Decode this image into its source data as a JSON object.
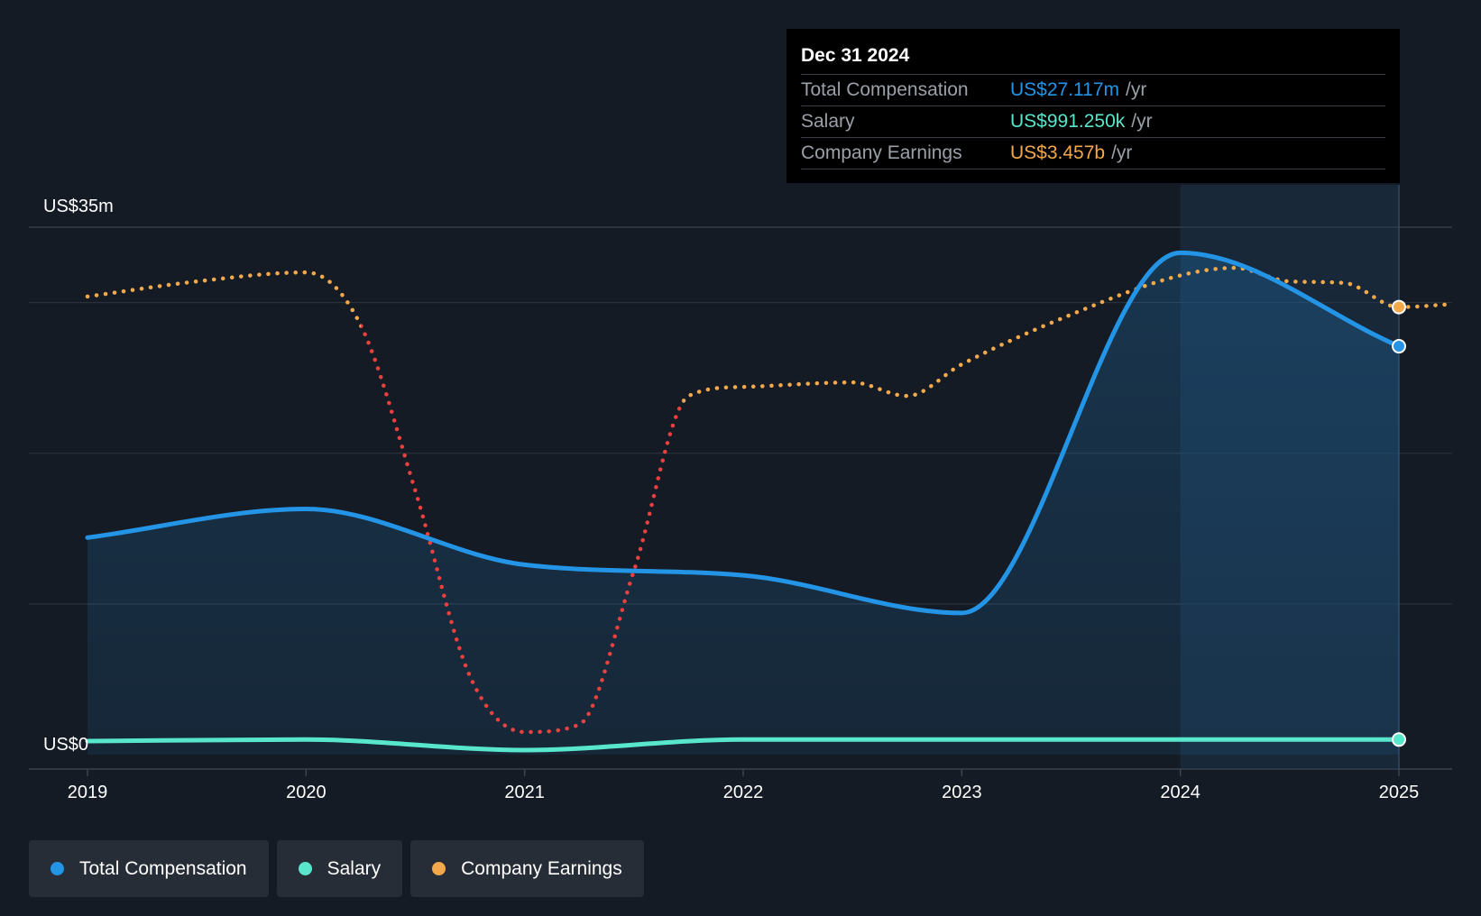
{
  "chart_data": {
    "type": "line",
    "y_axis": {
      "label_top": "US$35m",
      "label_bottom": "US$0",
      "ylim": [
        0,
        35
      ],
      "unit": "US$m"
    },
    "x_ticks": [
      "2019",
      "2020",
      "2021",
      "2022",
      "2023",
      "2024",
      "2025"
    ],
    "series": [
      {
        "name": "Total Compensation",
        "color": "#2394e6",
        "style": "solid-area",
        "x": [
          2019.0,
          2020.0,
          2021.0,
          2022.0,
          2023.0,
          2024.0,
          2025.0
        ],
        "values": [
          14.4,
          16.3,
          12.6,
          11.9,
          9.4,
          33.3,
          27.1
        ]
      },
      {
        "name": "Salary",
        "color": "#58e6cc",
        "style": "solid",
        "x": [
          2019.0,
          2020.0,
          2021.0,
          2022.0,
          2023.0,
          2024.0,
          2025.0
        ],
        "values": [
          0.9,
          1.0,
          0.3,
          1.0,
          1.0,
          1.0,
          1.0
        ]
      },
      {
        "name": "Company Earnings",
        "color": "#f2a94c",
        "negative_color": "#e8413f",
        "style": "dotted",
        "normalized_to_axis": true,
        "x": [
          2019.0,
          2019.5,
          2020.0,
          2020.25,
          2020.5,
          2020.75,
          2021.0,
          2021.25,
          2021.5,
          2021.75,
          2022.0,
          2022.5,
          2022.75,
          2023.0,
          2023.5,
          2024.0,
          2024.25,
          2024.5,
          2024.75,
          2025.0,
          2025.25
        ],
        "values": [
          30.4,
          31.4,
          32.0,
          28.5,
          17.5,
          5.2,
          1.5,
          2.0,
          12.2,
          23.8,
          24.4,
          24.7,
          23.8,
          25.9,
          29.2,
          31.8,
          32.3,
          31.4,
          31.3,
          29.7,
          29.9
        ]
      }
    ],
    "tooltip": {
      "date": "Dec 31 2024",
      "rows": [
        {
          "label": "Total Compensation",
          "value": "US$27.117m",
          "unit": "/yr",
          "color": "#2394e6"
        },
        {
          "label": "Salary",
          "value": "US$991.250k",
          "unit": "/yr",
          "color": "#58e6cc"
        },
        {
          "label": "Company Earnings",
          "value": "US$3.457b",
          "unit": "/yr",
          "color": "#f2a94c"
        }
      ]
    },
    "legend": [
      {
        "label": "Total Compensation",
        "color": "#2394e6"
      },
      {
        "label": "Salary",
        "color": "#58e6cc"
      },
      {
        "label": "Company Earnings",
        "color": "#f2a94c"
      }
    ],
    "highlight_range": [
      2024.0,
      2025.0
    ],
    "grid": true
  }
}
